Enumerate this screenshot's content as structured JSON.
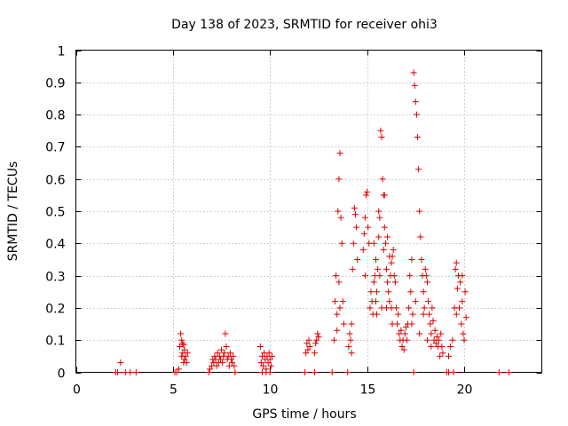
{
  "chart_data": {
    "type": "scatter",
    "title": "Day 138 of 2023, SRMTID for receiver ohi3",
    "xlabel": "GPS time / hours",
    "ylabel": "SRMTID / TECUs",
    "xlim": [
      0,
      24
    ],
    "ylim": [
      0,
      1
    ],
    "x_ticks": [
      0,
      5,
      10,
      15,
      20
    ],
    "x_tick_labels": [
      "0",
      "5",
      "10",
      "15",
      "20"
    ],
    "y_ticks": [
      0,
      0.1,
      0.2,
      0.3,
      0.4,
      0.5,
      0.6,
      0.7,
      0.8,
      0.9,
      1
    ],
    "y_tick_labels": [
      "0",
      "0.1",
      "0.2",
      "0.3",
      "0.4",
      "0.5",
      "0.6",
      "0.7",
      "0.8",
      "0.9",
      "1"
    ],
    "grid": true,
    "marker": "+",
    "color": "#e00000",
    "series": [
      {
        "name": "SRMTID",
        "points": [
          [
            2.05,
            0
          ],
          [
            2.15,
            0
          ],
          [
            2.3,
            0.03
          ],
          [
            2.55,
            0
          ],
          [
            2.8,
            0
          ],
          [
            3.1,
            0
          ],
          [
            5.1,
            0
          ],
          [
            5.2,
            0
          ],
          [
            5.3,
            0.01
          ],
          [
            5.35,
            0.08
          ],
          [
            5.4,
            0.12
          ],
          [
            5.45,
            0.1
          ],
          [
            5.5,
            0.09
          ],
          [
            5.5,
            0.06
          ],
          [
            5.55,
            0.085
          ],
          [
            5.6,
            0.07
          ],
          [
            5.6,
            0.04
          ],
          [
            5.65,
            0.05
          ],
          [
            5.7,
            0.03
          ],
          [
            5.75,
            0.06
          ],
          [
            5.45,
            0.05
          ],
          [
            5.55,
            0.03
          ],
          [
            6.85,
            0
          ],
          [
            6.9,
            0.01
          ],
          [
            7.0,
            0.02
          ],
          [
            7.05,
            0.04
          ],
          [
            7.1,
            0.03
          ],
          [
            7.15,
            0.05
          ],
          [
            7.2,
            0.04
          ],
          [
            7.25,
            0.02
          ],
          [
            7.3,
            0.06
          ],
          [
            7.35,
            0.03
          ],
          [
            7.4,
            0.05
          ],
          [
            7.45,
            0.04
          ],
          [
            7.5,
            0.07
          ],
          [
            7.55,
            0.03
          ],
          [
            7.6,
            0.05
          ],
          [
            7.65,
            0.06
          ],
          [
            7.7,
            0.12
          ],
          [
            7.75,
            0.08
          ],
          [
            7.8,
            0.04
          ],
          [
            7.85,
            0.05
          ],
          [
            7.9,
            0.02
          ],
          [
            7.95,
            0.06
          ],
          [
            8.0,
            0.04
          ],
          [
            8.05,
            0.03
          ],
          [
            8.1,
            0.05
          ],
          [
            8.15,
            0.02
          ],
          [
            8.2,
            0
          ],
          [
            9.5,
            0.08
          ],
          [
            9.55,
            0.03
          ],
          [
            9.6,
            0.05
          ],
          [
            9.65,
            0.02
          ],
          [
            9.7,
            0.06
          ],
          [
            9.75,
            0.04
          ],
          [
            9.8,
            0.01
          ],
          [
            9.85,
            0.05
          ],
          [
            9.9,
            0.03
          ],
          [
            9.95,
            0.06
          ],
          [
            10.0,
            0.04
          ],
          [
            10.05,
            0.02
          ],
          [
            10.1,
            0.05
          ],
          [
            9.6,
            0
          ],
          [
            9.8,
            0
          ],
          [
            10.0,
            0
          ],
          [
            11.8,
            0
          ],
          [
            11.85,
            0.06
          ],
          [
            11.9,
            0.09
          ],
          [
            11.95,
            0.07
          ],
          [
            12.0,
            0.1
          ],
          [
            12.05,
            0.08
          ],
          [
            12.3,
            0.06
          ],
          [
            12.35,
            0.09
          ],
          [
            12.4,
            0.1
          ],
          [
            12.45,
            0.12
          ],
          [
            12.5,
            0.11
          ],
          [
            12.3,
            0
          ],
          [
            13.2,
            0
          ],
          [
            13.3,
            0.1
          ],
          [
            13.35,
            0.22
          ],
          [
            13.4,
            0.3
          ],
          [
            13.45,
            0.18
          ],
          [
            13.5,
            0.5
          ],
          [
            13.55,
            0.28
          ],
          [
            13.6,
            0.68
          ],
          [
            13.65,
            0.48
          ],
          [
            13.7,
            0.4
          ],
          [
            13.75,
            0.22
          ],
          [
            13.8,
            0.15
          ],
          [
            13.6,
            0.2
          ],
          [
            13.45,
            0.13
          ],
          [
            13.55,
            0.6
          ],
          [
            14.0,
            0
          ],
          [
            14.05,
            0.08
          ],
          [
            14.1,
            0.12
          ],
          [
            14.15,
            0.1
          ],
          [
            14.2,
            0.15
          ],
          [
            14.25,
            0.32
          ],
          [
            14.3,
            0.4
          ],
          [
            14.35,
            0.51
          ],
          [
            14.4,
            0.49
          ],
          [
            14.45,
            0.45
          ],
          [
            14.5,
            0.35
          ],
          [
            14.2,
            0.06
          ],
          [
            14.8,
            0.38
          ],
          [
            14.85,
            0.43
          ],
          [
            14.9,
            0.48
          ],
          [
            14.95,
            0.55
          ],
          [
            15.0,
            0.56
          ],
          [
            14.9,
            0.3
          ],
          [
            15.05,
            0.45
          ],
          [
            15.1,
            0.4
          ],
          [
            15.15,
            0.2
          ],
          [
            15.2,
            0.25
          ],
          [
            15.25,
            0.22
          ],
          [
            15.3,
            0.18
          ],
          [
            15.35,
            0.28
          ],
          [
            15.4,
            0.3
          ],
          [
            15.45,
            0.35
          ],
          [
            15.5,
            0.25
          ],
          [
            15.55,
            0.32
          ],
          [
            15.6,
            0.42
          ],
          [
            15.65,
            0.48
          ],
          [
            15.7,
            0.75
          ],
          [
            15.75,
            0.73
          ],
          [
            15.8,
            0.6
          ],
          [
            15.85,
            0.55
          ],
          [
            15.9,
            0.45
          ],
          [
            15.95,
            0.4
          ],
          [
            16.0,
            0.32
          ],
          [
            16.05,
            0.28
          ],
          [
            16.1,
            0.25
          ],
          [
            16.15,
            0.22
          ],
          [
            16.2,
            0.3
          ],
          [
            16.25,
            0.34
          ],
          [
            16.3,
            0.36
          ],
          [
            16.35,
            0.38
          ],
          [
            16.4,
            0.3
          ],
          [
            16.45,
            0.28
          ],
          [
            16.5,
            0.2
          ],
          [
            16.55,
            0.15
          ],
          [
            16.6,
            0.18
          ],
          [
            16.65,
            0.12
          ],
          [
            16.7,
            0.1
          ],
          [
            16.75,
            0.13
          ],
          [
            16.8,
            0.08
          ],
          [
            16.85,
            0.1
          ],
          [
            16.9,
            0.07
          ],
          [
            16.95,
            0.12
          ],
          [
            17.0,
            0.14
          ],
          [
            17.05,
            0.1
          ],
          [
            17.1,
            0.15
          ],
          [
            15.5,
            0.18
          ],
          [
            15.75,
            0.2
          ],
          [
            16.0,
            0.2
          ],
          [
            16.3,
            0.15
          ],
          [
            15.6,
            0.5
          ],
          [
            15.65,
            0.3
          ],
          [
            15.85,
            0.38
          ],
          [
            16.05,
            0.42
          ],
          [
            16.15,
            0.36
          ],
          [
            16.25,
            0.2
          ],
          [
            15.9,
            0.55
          ],
          [
            15.35,
            0.4
          ],
          [
            15.45,
            0.22
          ],
          [
            17.15,
            0.2
          ],
          [
            17.2,
            0.3
          ],
          [
            17.25,
            0.25
          ],
          [
            17.3,
            0.35
          ],
          [
            17.35,
            0.18
          ],
          [
            17.4,
            0.93
          ],
          [
            17.45,
            0.89
          ],
          [
            17.5,
            0.84
          ],
          [
            17.55,
            0.8
          ],
          [
            17.6,
            0.73
          ],
          [
            17.65,
            0.63
          ],
          [
            17.7,
            0.5
          ],
          [
            17.75,
            0.42
          ],
          [
            17.8,
            0.35
          ],
          [
            17.85,
            0.3
          ],
          [
            17.9,
            0.25
          ],
          [
            17.95,
            0.2
          ],
          [
            18.0,
            0.32
          ],
          [
            18.05,
            0.3
          ],
          [
            18.1,
            0.28
          ],
          [
            18.15,
            0.22
          ],
          [
            18.2,
            0.18
          ],
          [
            18.25,
            0.15
          ],
          [
            18.3,
            0.12
          ],
          [
            18.35,
            0.2
          ],
          [
            18.4,
            0.16
          ],
          [
            18.45,
            0.1
          ],
          [
            18.5,
            0.13
          ],
          [
            18.55,
            0.09
          ],
          [
            18.6,
            0.11
          ],
          [
            18.65,
            0.08
          ],
          [
            18.7,
            0.1
          ],
          [
            18.75,
            0.05
          ],
          [
            18.8,
            0.12
          ],
          [
            18.85,
            0.08
          ],
          [
            18.9,
            0.06
          ],
          [
            17.3,
            0.15
          ],
          [
            17.5,
            0.22
          ],
          [
            17.7,
            0.12
          ],
          [
            17.9,
            0.18
          ],
          [
            18.1,
            0.1
          ],
          [
            18.3,
            0.08
          ],
          [
            17.4,
            0
          ],
          [
            19.1,
            0
          ],
          [
            19.2,
            0.05
          ],
          [
            19.3,
            0.08
          ],
          [
            19.4,
            0.1
          ],
          [
            19.5,
            0.2
          ],
          [
            19.55,
            0.32
          ],
          [
            19.6,
            0.34
          ],
          [
            19.65,
            0.26
          ],
          [
            19.7,
            0.3
          ],
          [
            19.75,
            0.2
          ],
          [
            19.8,
            0.28
          ],
          [
            19.85,
            0.15
          ],
          [
            19.9,
            0.22
          ],
          [
            19.95,
            0.12
          ],
          [
            20.0,
            0.1
          ],
          [
            20.05,
            0.25
          ],
          [
            19.9,
            0.3
          ],
          [
            19.6,
            0.18
          ],
          [
            20.1,
            0.17
          ],
          [
            19.45,
            0
          ],
          [
            19.2,
            0
          ],
          [
            21.8,
            0
          ],
          [
            22.3,
            0
          ]
        ]
      }
    ]
  }
}
